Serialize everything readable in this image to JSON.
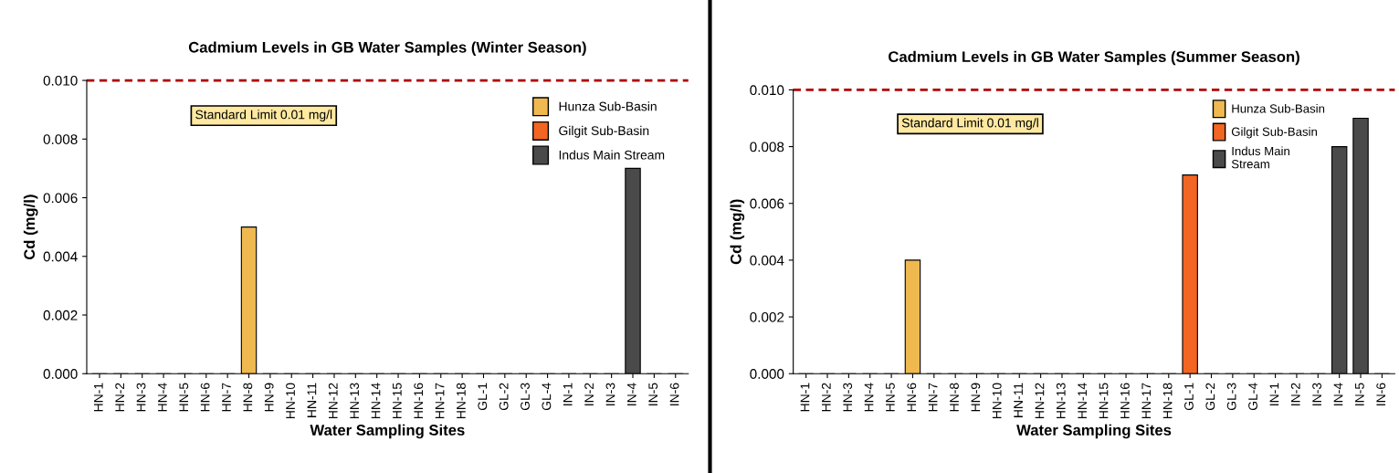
{
  "chart_data": [
    {
      "type": "bar",
      "title": "Cadmium Levels in GB Water Samples (Winter Season)",
      "xlabel": "Water Sampling Sites",
      "ylabel": "Cd (mg/l)",
      "categories": [
        "HN-1",
        "HN-2",
        "HN-3",
        "HN-4",
        "HN-5",
        "HN-6",
        "HN-7",
        "HN-8",
        "HN-9",
        "HN-10",
        "HN-11",
        "HN-12",
        "HN-13",
        "HN-14",
        "HN-15",
        "HN-16",
        "HN-17",
        "HN-18",
        "GL-1",
        "GL-2",
        "GL-3",
        "GL-4",
        "IN-1",
        "IN-2",
        "IN-3",
        "IN-4",
        "IN-5",
        "IN-6"
      ],
      "series": [
        {
          "name": "Hunza Sub-Basin",
          "color": "#efb94f",
          "values": [
            0,
            0,
            0,
            0,
            0,
            0,
            0,
            0.005,
            0,
            0,
            0,
            0,
            0,
            0,
            0,
            0,
            0,
            0,
            null,
            null,
            null,
            null,
            null,
            null,
            null,
            null,
            null,
            null
          ]
        },
        {
          "name": "Gilgit Sub-Basin",
          "color": "#f26522",
          "values": [
            null,
            null,
            null,
            null,
            null,
            null,
            null,
            null,
            null,
            null,
            null,
            null,
            null,
            null,
            null,
            null,
            null,
            null,
            0,
            0,
            0,
            0,
            null,
            null,
            null,
            null,
            null,
            null
          ]
        },
        {
          "name": "Indus Main Stream",
          "color": "#4a4a4a",
          "values": [
            null,
            null,
            null,
            null,
            null,
            null,
            null,
            null,
            null,
            null,
            null,
            null,
            null,
            null,
            null,
            null,
            null,
            null,
            null,
            null,
            null,
            null,
            0,
            0,
            0,
            0.007,
            0,
            0
          ]
        }
      ],
      "ylim": [
        0,
        0.01
      ],
      "yticks": [
        {
          "value": 0,
          "label": "0.000"
        },
        {
          "value": 0.002,
          "label": "0.002"
        },
        {
          "value": 0.004,
          "label": "0.004"
        },
        {
          "value": 0.006,
          "label": "0.006"
        },
        {
          "value": 0.008,
          "label": "0.008"
        },
        {
          "value": 0.01,
          "label": "0.010"
        }
      ],
      "ref_lines": [
        {
          "axis": "y",
          "value": 0.01,
          "label": "Standard Limit 0.01 mg/l",
          "color": "#b00000",
          "line_style": "dashed"
        }
      ],
      "legend": "top right",
      "grid": false
    },
    {
      "type": "bar",
      "title": "Cadmium Levels in GB Water Samples (Summer Season)",
      "xlabel": "Water Sampling Sites",
      "ylabel": "Cd (mg/l)",
      "categories": [
        "HN-1",
        "HN-2",
        "HN-3",
        "HN-4",
        "HN-5",
        "HN-6",
        "HN-7",
        "HN-8",
        "HN-9",
        "HN-10",
        "HN-11",
        "HN-12",
        "HN-13",
        "HN-14",
        "HN-15",
        "HN-16",
        "HN-17",
        "HN-18",
        "GL-1",
        "GL-2",
        "GL-3",
        "GL-4",
        "IN-1",
        "IN-2",
        "IN-3",
        "IN-4",
        "IN-5",
        "IN-6"
      ],
      "series": [
        {
          "name": "Hunza Sub-Basin",
          "color": "#efb94f",
          "values": [
            0,
            0,
            0,
            0,
            0,
            0.004,
            0,
            0,
            0,
            0,
            0,
            0,
            0,
            0,
            0,
            0,
            0,
            0,
            null,
            null,
            null,
            null,
            null,
            null,
            null,
            null,
            null,
            null
          ]
        },
        {
          "name": "Gilgit Sub-Basin",
          "color": "#f26522",
          "values": [
            null,
            null,
            null,
            null,
            null,
            null,
            null,
            null,
            null,
            null,
            null,
            null,
            null,
            null,
            null,
            null,
            null,
            null,
            0.007,
            0,
            0,
            0,
            null,
            null,
            null,
            null,
            null,
            null
          ]
        },
        {
          "name": "Indus Main\nStream",
          "color": "#4a4a4a",
          "values": [
            null,
            null,
            null,
            null,
            null,
            null,
            null,
            null,
            null,
            null,
            null,
            null,
            null,
            null,
            null,
            null,
            null,
            null,
            null,
            null,
            null,
            null,
            0,
            0,
            0,
            0.008,
            0.009,
            0
          ]
        }
      ],
      "ylim": [
        0,
        0.01
      ],
      "yticks": [
        {
          "value": 0,
          "label": "0.000"
        },
        {
          "value": 0.002,
          "label": "0.002"
        },
        {
          "value": 0.004,
          "label": "0.004"
        },
        {
          "value": 0.006,
          "label": "0.006"
        },
        {
          "value": 0.008,
          "label": "0.008"
        },
        {
          "value": 0.01,
          "label": "0.010"
        }
      ],
      "ref_lines": [
        {
          "axis": "y",
          "value": 0.01,
          "label": "Standard Limit 0.01 mg/l",
          "color": "#b00000",
          "line_style": "dashed"
        }
      ],
      "legend": "top right",
      "grid": false
    }
  ]
}
